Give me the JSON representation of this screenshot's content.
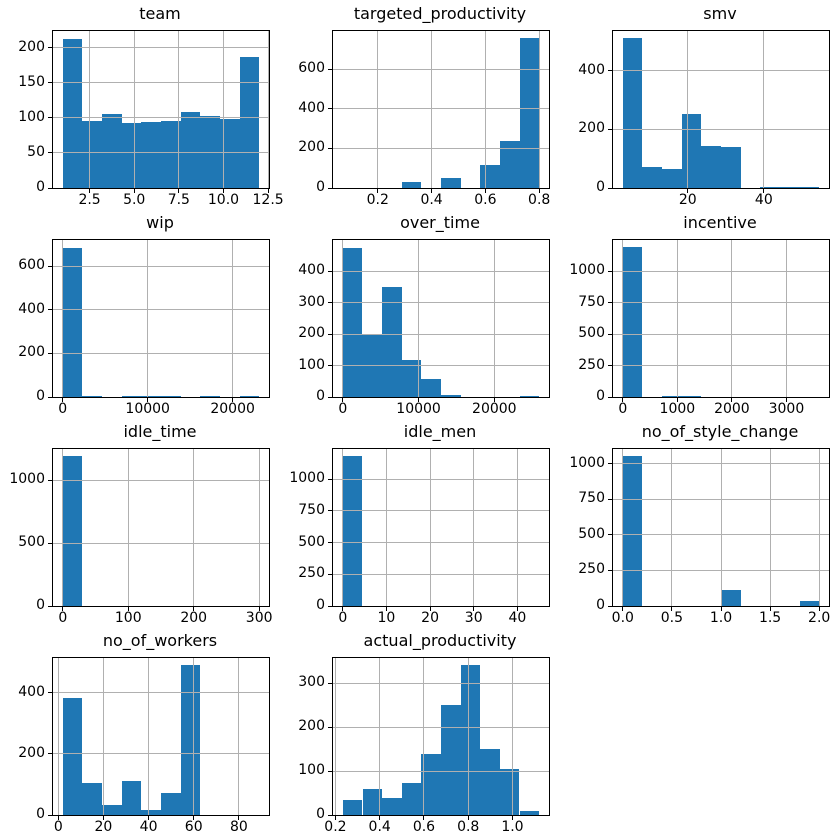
{
  "figure": {
    "kind": "dataframe-histogram-grid",
    "rows": 4,
    "columns": 3,
    "background": "#ffffff",
    "bar_color": "#1f77b4",
    "grid_color": "#b0b0b0",
    "spine_color": "#000000",
    "text_color": "#000000"
  },
  "chart_data": [
    {
      "type": "bar",
      "subtype": "histogram",
      "title": "team",
      "bin_start": 1,
      "bin_end": 12,
      "values": [
        213,
        95,
        105,
        93,
        94,
        96,
        108,
        103,
        99,
        186
      ],
      "xlim": [
        0.45,
        12.55
      ],
      "ylim": [
        0,
        223.7
      ],
      "xticks": [
        2.5,
        5.0,
        7.5,
        10.0,
        12.5
      ],
      "xtick_labels": [
        "2.5",
        "5.0",
        "7.5",
        "10.0",
        "12.5"
      ],
      "yticks": [
        0,
        50,
        100,
        150,
        200
      ],
      "ytick_labels": [
        "0",
        "50",
        "100",
        "150",
        "200"
      ],
      "grid": true
    },
    {
      "type": "bar",
      "subtype": "histogram",
      "title": "targeted_productivity",
      "bin_start": 0.07,
      "bin_end": 0.8,
      "values": [
        0,
        0,
        0,
        28,
        0,
        48,
        0,
        115,
        237,
        754
      ],
      "xlim": [
        0.0335,
        0.8365
      ],
      "ylim": [
        0,
        791.7
      ],
      "xticks": [
        0.2,
        0.4,
        0.6,
        0.8
      ],
      "xtick_labels": [
        "0.2",
        "0.4",
        "0.6",
        "0.8"
      ],
      "yticks": [
        0,
        200,
        400,
        600
      ],
      "ytick_labels": [
        "0",
        "200",
        "400",
        "600"
      ],
      "grid": true
    },
    {
      "type": "bar",
      "subtype": "histogram",
      "title": "smv",
      "bin_start": 2.9,
      "bin_end": 54.56,
      "values": [
        510,
        72,
        65,
        252,
        145,
        140,
        0,
        3,
        3,
        3
      ],
      "xlim": [
        0.32,
        57.14
      ],
      "ylim": [
        0,
        535.5
      ],
      "xticks": [
        20,
        40
      ],
      "xtick_labels": [
        "20",
        "40"
      ],
      "yticks": [
        0,
        200,
        400
      ],
      "ytick_labels": [
        "0",
        "200",
        "400"
      ],
      "grid": true
    },
    {
      "type": "bar",
      "subtype": "histogram",
      "title": "wip",
      "bin_start": 10,
      "bin_end": 23122,
      "values": [
        685,
        5,
        0,
        4,
        4,
        4,
        0,
        4,
        0,
        5
      ],
      "xlim": [
        -1145,
        24278
      ],
      "ylim": [
        0,
        719.3
      ],
      "xticks": [
        0,
        10000,
        20000
      ],
      "xtick_labels": [
        "0",
        "10000",
        "20000"
      ],
      "yticks": [
        0,
        200,
        400,
        600
      ],
      "ytick_labels": [
        "0",
        "200",
        "400",
        "600"
      ],
      "grid": true
    },
    {
      "type": "bar",
      "subtype": "histogram",
      "title": "over_time",
      "bin_start": 0,
      "bin_end": 25920,
      "values": [
        475,
        198,
        350,
        117,
        56,
        7,
        0,
        0,
        0,
        3
      ],
      "xlim": [
        -1296,
        27216
      ],
      "ylim": [
        0,
        498.8
      ],
      "xticks": [
        0,
        10000,
        20000
      ],
      "xtick_labels": [
        "0",
        "10000",
        "20000"
      ],
      "yticks": [
        0,
        100,
        200,
        300,
        400
      ],
      "ytick_labels": [
        "0",
        "100",
        "200",
        "300",
        "400"
      ],
      "grid": true
    },
    {
      "type": "bar",
      "subtype": "histogram",
      "title": "incentive",
      "bin_start": 0,
      "bin_end": 3600,
      "values": [
        1190,
        0,
        8,
        8,
        0,
        0,
        0,
        0,
        0,
        0
      ],
      "xlim": [
        -180,
        3780
      ],
      "ylim": [
        0,
        1249.5
      ],
      "xticks": [
        0,
        1000,
        2000,
        3000
      ],
      "xtick_labels": [
        "0",
        "1000",
        "2000",
        "3000"
      ],
      "yticks": [
        0,
        250,
        500,
        750,
        1000
      ],
      "ytick_labels": [
        "0",
        "250",
        "500",
        "750",
        "1000"
      ],
      "grid": true
    },
    {
      "type": "bar",
      "subtype": "histogram",
      "title": "idle_time",
      "bin_start": 0,
      "bin_end": 300,
      "values": [
        1190,
        0,
        0,
        0,
        0,
        0,
        0,
        0,
        0,
        0
      ],
      "xlim": [
        -15,
        315
      ],
      "ylim": [
        0,
        1249.5
      ],
      "xticks": [
        0,
        100,
        200,
        300
      ],
      "xtick_labels": [
        "0",
        "100",
        "200",
        "300"
      ],
      "yticks": [
        0,
        500,
        1000
      ],
      "ytick_labels": [
        "0",
        "500",
        "1000"
      ],
      "grid": true
    },
    {
      "type": "bar",
      "subtype": "histogram",
      "title": "idle_men",
      "bin_start": 0,
      "bin_end": 45,
      "values": [
        1180,
        0,
        0,
        0,
        0,
        0,
        0,
        0,
        0,
        0
      ],
      "xlim": [
        -2.25,
        47.25
      ],
      "ylim": [
        0,
        1239
      ],
      "xticks": [
        0,
        10,
        20,
        30,
        40
      ],
      "xtick_labels": [
        "0",
        "10",
        "20",
        "30",
        "40"
      ],
      "yticks": [
        0,
        250,
        500,
        750,
        1000
      ],
      "ytick_labels": [
        "0",
        "250",
        "500",
        "750",
        "1000"
      ],
      "grid": true
    },
    {
      "type": "bar",
      "subtype": "histogram",
      "title": "no_of_style_change",
      "bin_start": 0,
      "bin_end": 2,
      "values": [
        1050,
        0,
        0,
        0,
        0,
        115,
        0,
        0,
        0,
        35
      ],
      "xlim": [
        -0.1,
        2.1
      ],
      "ylim": [
        0,
        1102.5
      ],
      "xticks": [
        0.0,
        0.5,
        1.0,
        1.5,
        2.0
      ],
      "xtick_labels": [
        "0.0",
        "0.5",
        "1.0",
        "1.5",
        "2.0"
      ],
      "yticks": [
        0,
        250,
        500,
        750,
        1000
      ],
      "ytick_labels": [
        "0",
        "250",
        "500",
        "750",
        "1000"
      ],
      "grid": true
    },
    {
      "type": "bar",
      "subtype": "histogram",
      "title": "no_of_workers",
      "bin_start": 2,
      "bin_end": 89,
      "values": [
        385,
        105,
        32,
        113,
        15,
        73,
        490,
        0,
        0,
        0
      ],
      "xlim": [
        -2.35,
        93.35
      ],
      "ylim": [
        0,
        514.5
      ],
      "xticks": [
        0,
        20,
        40,
        60,
        80
      ],
      "xtick_labels": [
        "0",
        "20",
        "40",
        "60",
        "80"
      ],
      "yticks": [
        0,
        200,
        400
      ],
      "ytick_labels": [
        "0",
        "200",
        "400"
      ],
      "grid": true
    },
    {
      "type": "bar",
      "subtype": "histogram",
      "title": "actual_productivity",
      "bin_start": 0.2337,
      "bin_end": 1.1204,
      "values": [
        35,
        60,
        38,
        72,
        138,
        250,
        340,
        150,
        105,
        10
      ],
      "xlim": [
        0.189,
        1.165
      ],
      "ylim": [
        0,
        357
      ],
      "xticks": [
        0.2,
        0.4,
        0.6,
        0.8,
        1.0
      ],
      "xtick_labels": [
        "0.2",
        "0.4",
        "0.6",
        "0.8",
        "1.0"
      ],
      "yticks": [
        0,
        100,
        200,
        300
      ],
      "ytick_labels": [
        "0",
        "100",
        "200",
        "300"
      ],
      "grid": true
    }
  ]
}
